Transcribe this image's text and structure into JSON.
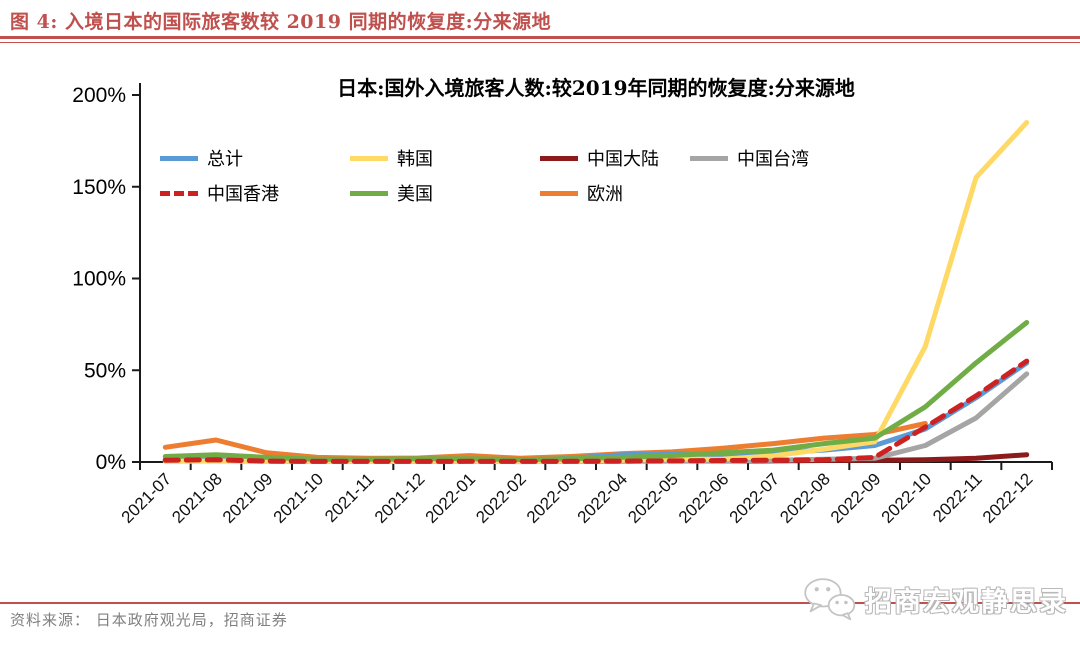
{
  "header": {
    "title": "图 4:  入境日本的国际旅客数较 2019 同期的恢复度:分来源地"
  },
  "footer": {
    "source": "资料来源：  日本政府观光局，招商证券",
    "watermark": "招商宏观静思录",
    "watermark_icon": "wechat-icon"
  },
  "colors": {
    "accent_rule": "#C0504D",
    "axis": "#1a1a1a",
    "source_text": "#808080"
  },
  "chart_data": {
    "type": "line",
    "title": "日本:国外入境旅客人数:较2019年同期的恢复度:分来源地",
    "xlabel": "",
    "ylabel": "",
    "ylim": [
      0,
      200
    ],
    "yticks": [
      0,
      50,
      100,
      150,
      200
    ],
    "ytick_format": "%",
    "grid": false,
    "legend_position": "inside-top-left",
    "categories": [
      "2021-07",
      "2021-08",
      "2021-09",
      "2021-10",
      "2021-11",
      "2021-12",
      "2022-01",
      "2022-02",
      "2022-03",
      "2022-04",
      "2022-05",
      "2022-06",
      "2022-07",
      "2022-08",
      "2022-09",
      "2022-10",
      "2022-11",
      "2022-12"
    ],
    "series": [
      {
        "name": "总计",
        "color": "#5B9BD5",
        "dash": false,
        "values": [
          1.5,
          2,
          1,
          0.8,
          0.8,
          0.8,
          0.8,
          0.7,
          2,
          4,
          4.5,
          3.8,
          5,
          6.5,
          9,
          18,
          35,
          54
        ]
      },
      {
        "name": "韩国",
        "color": "#FFD966",
        "dash": false,
        "values": [
          0.4,
          0.5,
          0.4,
          0.3,
          0.3,
          0.4,
          0.4,
          0.3,
          0.5,
          1,
          1.5,
          1.6,
          3.3,
          7,
          11,
          63,
          155,
          185
        ]
      },
      {
        "name": "中国大陆",
        "color": "#8E1B1B",
        "dash": false,
        "values": [
          0.8,
          0.8,
          0.5,
          0.3,
          0.3,
          0.3,
          0.4,
          0.3,
          0.4,
          0.5,
          0.6,
          0.5,
          0.6,
          0.8,
          1,
          1.2,
          2,
          4
        ]
      },
      {
        "name": "中国台湾",
        "color": "#A5A5A5",
        "dash": false,
        "values": [
          0.5,
          0.6,
          0.4,
          0.3,
          0.3,
          0.3,
          0.3,
          0.2,
          0.3,
          0.4,
          0.5,
          0.5,
          1,
          1.5,
          2,
          9,
          24,
          48
        ]
      },
      {
        "name": "中国香港",
        "color": "#CC2222",
        "dash": true,
        "values": [
          1,
          1.2,
          0.5,
          0.3,
          0.3,
          0.3,
          0.4,
          0.3,
          0.4,
          0.5,
          0.6,
          0.8,
          1,
          1.2,
          2.5,
          19,
          36,
          55
        ]
      },
      {
        "name": "美国",
        "color": "#70AD47",
        "dash": false,
        "values": [
          3,
          4,
          2.5,
          1.5,
          1.5,
          1.8,
          1.8,
          1.3,
          1.8,
          2.5,
          3.5,
          5,
          6.5,
          10,
          13,
          30,
          54,
          76
        ]
      },
      {
        "name": "欧洲",
        "color": "#ED7D31",
        "dash": false,
        "values": [
          8,
          12,
          5,
          2.5,
          2,
          2.2,
          3.5,
          2,
          3,
          4.5,
          5.5,
          7.5,
          10,
          13,
          15,
          21,
          null,
          null
        ]
      }
    ],
    "legend_rows": [
      [
        "总计",
        "韩国",
        "中国大陆",
        "中国台湾"
      ],
      [
        "中国香港",
        "美国",
        "欧洲"
      ]
    ]
  }
}
